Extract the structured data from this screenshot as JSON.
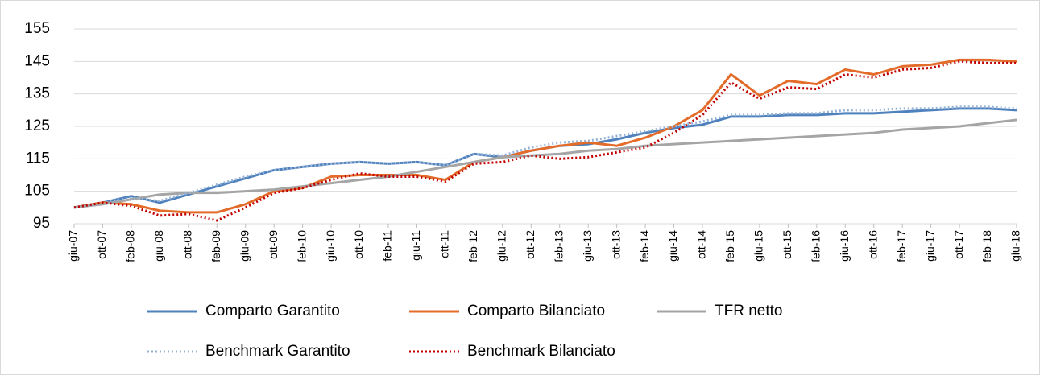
{
  "chart_data": {
    "type": "line",
    "categories": [
      "giu-07",
      "ott-07",
      "feb-08",
      "giu-08",
      "ott-08",
      "feb-09",
      "giu-09",
      "ott-09",
      "feb-10",
      "giu-10",
      "ott-10",
      "feb-11",
      "giu-11",
      "ott-11",
      "feb-12",
      "giu-12",
      "ott-12",
      "feb-13",
      "giu-13",
      "ott-13",
      "feb-14",
      "giu-14",
      "ott-14",
      "feb-15",
      "giu-15",
      "ott-15",
      "feb-16",
      "giu-16",
      "ott-16",
      "feb-17",
      "giu-17",
      "ott-17",
      "feb-18",
      "giu-18"
    ],
    "ylim": [
      95,
      155
    ],
    "yticks": [
      95,
      105,
      115,
      125,
      135,
      145,
      155
    ],
    "grid": true,
    "series": [
      {
        "name": "Comparto Garantito",
        "color": "#4f81bd",
        "style": "solid",
        "values": [
          100,
          101.5,
          103.5,
          101.5,
          104,
          106.5,
          109,
          111.5,
          112.5,
          113.5,
          114,
          113.5,
          114,
          113,
          116.5,
          115.5,
          117.5,
          119,
          119.5,
          121,
          123,
          124.5,
          125.5,
          128,
          128,
          128.5,
          128.5,
          129,
          129,
          129.5,
          130,
          130.5,
          130.5,
          130
        ]
      },
      {
        "name": "Comparto Bilanciato",
        "color": "#e46c2a",
        "style": "solid",
        "values": [
          100,
          101.5,
          101,
          99,
          98.5,
          98.5,
          101,
          105,
          106,
          109.5,
          110,
          110,
          110,
          108.5,
          114,
          115.5,
          117.5,
          119,
          120,
          119,
          121.5,
          125,
          130,
          141,
          134.5,
          139,
          138,
          142.5,
          141,
          143.5,
          144,
          145.5,
          145.5,
          145
        ]
      },
      {
        "name": "TFR netto",
        "color": "#a5a5a5",
        "style": "solid",
        "values": [
          100,
          101,
          102.5,
          104,
          104.5,
          104.5,
          105,
          105.5,
          106.5,
          107.5,
          108.5,
          109.5,
          111,
          112.5,
          114,
          115.5,
          116,
          116.5,
          117.5,
          118,
          119,
          119.5,
          120,
          120.5,
          121,
          121.5,
          122,
          122.5,
          123,
          124,
          124.5,
          125,
          126,
          127
        ]
      },
      {
        "name": "Benchmark Garantito",
        "color": "#95b3d7",
        "style": "dotted",
        "values": [
          100,
          101.5,
          103,
          102,
          104.5,
          107,
          109.5,
          111.5,
          112.5,
          113.5,
          114,
          113.5,
          114,
          113,
          116.5,
          116,
          118.5,
          120,
          120.5,
          122,
          123.5,
          125,
          126.5,
          128.5,
          128.5,
          129,
          129,
          130,
          130,
          130.5,
          130.5,
          131,
          131,
          130.5
        ]
      },
      {
        "name": "Benchmark Bilanciato",
        "color": "#c00000",
        "style": "dotted",
        "values": [
          100,
          101.5,
          100.5,
          97.5,
          98,
          96,
          100,
          104.5,
          106,
          108.5,
          110.5,
          109.5,
          109.5,
          108,
          113.5,
          114,
          116,
          115,
          115.5,
          117,
          118.5,
          123,
          128.5,
          138.5,
          133.5,
          137,
          136.5,
          141,
          140,
          142.5,
          143,
          145,
          144.5,
          144.5
        ]
      }
    ]
  }
}
